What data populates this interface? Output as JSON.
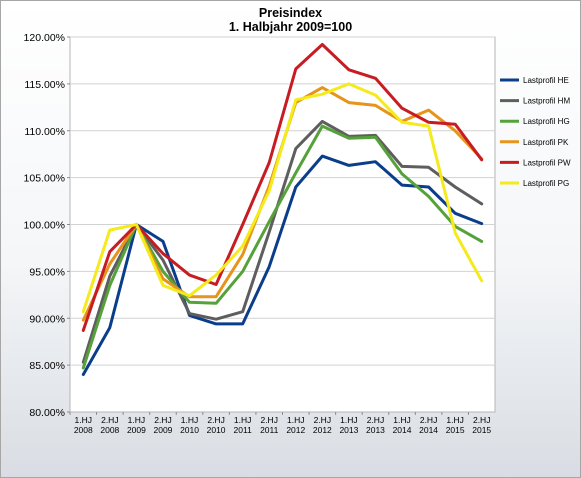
{
  "chart_data": {
    "type": "line",
    "title": "Preisindex",
    "subtitle": "1. Halbjahr 2009=100",
    "xlabel": "",
    "ylabel": "",
    "ylim": [
      80,
      120
    ],
    "ytick_step": 5,
    "ytick_labels": [
      "80.00%",
      "85.00%",
      "90.00%",
      "95.00%",
      "100.00%",
      "105.00%",
      "110.00%",
      "115.00%",
      "120.00%"
    ],
    "grid": "horizontal",
    "legend_position": "right",
    "categories": [
      [
        "1.HJ",
        "2008"
      ],
      [
        "2.HJ",
        "2008"
      ],
      [
        "1.HJ",
        "2009"
      ],
      [
        "2.HJ",
        "2009"
      ],
      [
        "1.HJ",
        "2010"
      ],
      [
        "2.HJ",
        "2010"
      ],
      [
        "1.HJ",
        "2011"
      ],
      [
        "2.HJ",
        "2011"
      ],
      [
        "1.HJ",
        "2012"
      ],
      [
        "2.HJ",
        "2012"
      ],
      [
        "1.HJ",
        "2013"
      ],
      [
        "2.HJ",
        "2013"
      ],
      [
        "1.HJ",
        "2014"
      ],
      [
        "2.HJ",
        "2014"
      ],
      [
        "1.HJ",
        "2015"
      ],
      [
        "2.HJ",
        "2015"
      ]
    ],
    "series": [
      {
        "name": "Lastprofil HE",
        "color": "#0b3e8a",
        "values": [
          84.0,
          89.0,
          100.0,
          98.2,
          90.3,
          89.4,
          89.4,
          95.5,
          104.0,
          107.3,
          106.3,
          106.7,
          104.2,
          104.0,
          101.2,
          100.1
        ]
      },
      {
        "name": "Lastprofil HM",
        "color": "#5e5e5e",
        "values": [
          85.3,
          94.5,
          100.0,
          96.2,
          90.5,
          89.9,
          90.7,
          99.2,
          108.1,
          111.0,
          109.4,
          109.5,
          106.2,
          106.1,
          104.0,
          102.2
        ]
      },
      {
        "name": "Lastprofil HG",
        "color": "#55a13a",
        "values": [
          84.7,
          93.5,
          100.0,
          95.0,
          91.7,
          91.6,
          95.0,
          100.3,
          105.5,
          110.5,
          109.2,
          109.3,
          105.4,
          103.0,
          99.8,
          98.2
        ]
      },
      {
        "name": "Lastprofil PK",
        "color": "#e6941a",
        "values": [
          89.8,
          95.8,
          100.0,
          94.2,
          92.3,
          92.3,
          96.8,
          104.1,
          113.0,
          114.6,
          113.0,
          112.7,
          111.0,
          112.2,
          110.0,
          107.0
        ]
      },
      {
        "name": "Lastprofil PW",
        "color": "#c71c22",
        "values": [
          88.7,
          97.1,
          100.0,
          96.9,
          94.6,
          93.6,
          100.0,
          106.6,
          116.6,
          119.2,
          116.5,
          115.6,
          112.4,
          110.9,
          110.7,
          106.9
        ]
      },
      {
        "name": "Lastprofil PG",
        "color": "#f4ea1c",
        "values": [
          90.7,
          99.4,
          100.0,
          93.5,
          92.4,
          94.6,
          97.7,
          103.6,
          113.3,
          113.9,
          115.0,
          113.8,
          110.9,
          110.5,
          99.1,
          94.0
        ]
      }
    ]
  }
}
